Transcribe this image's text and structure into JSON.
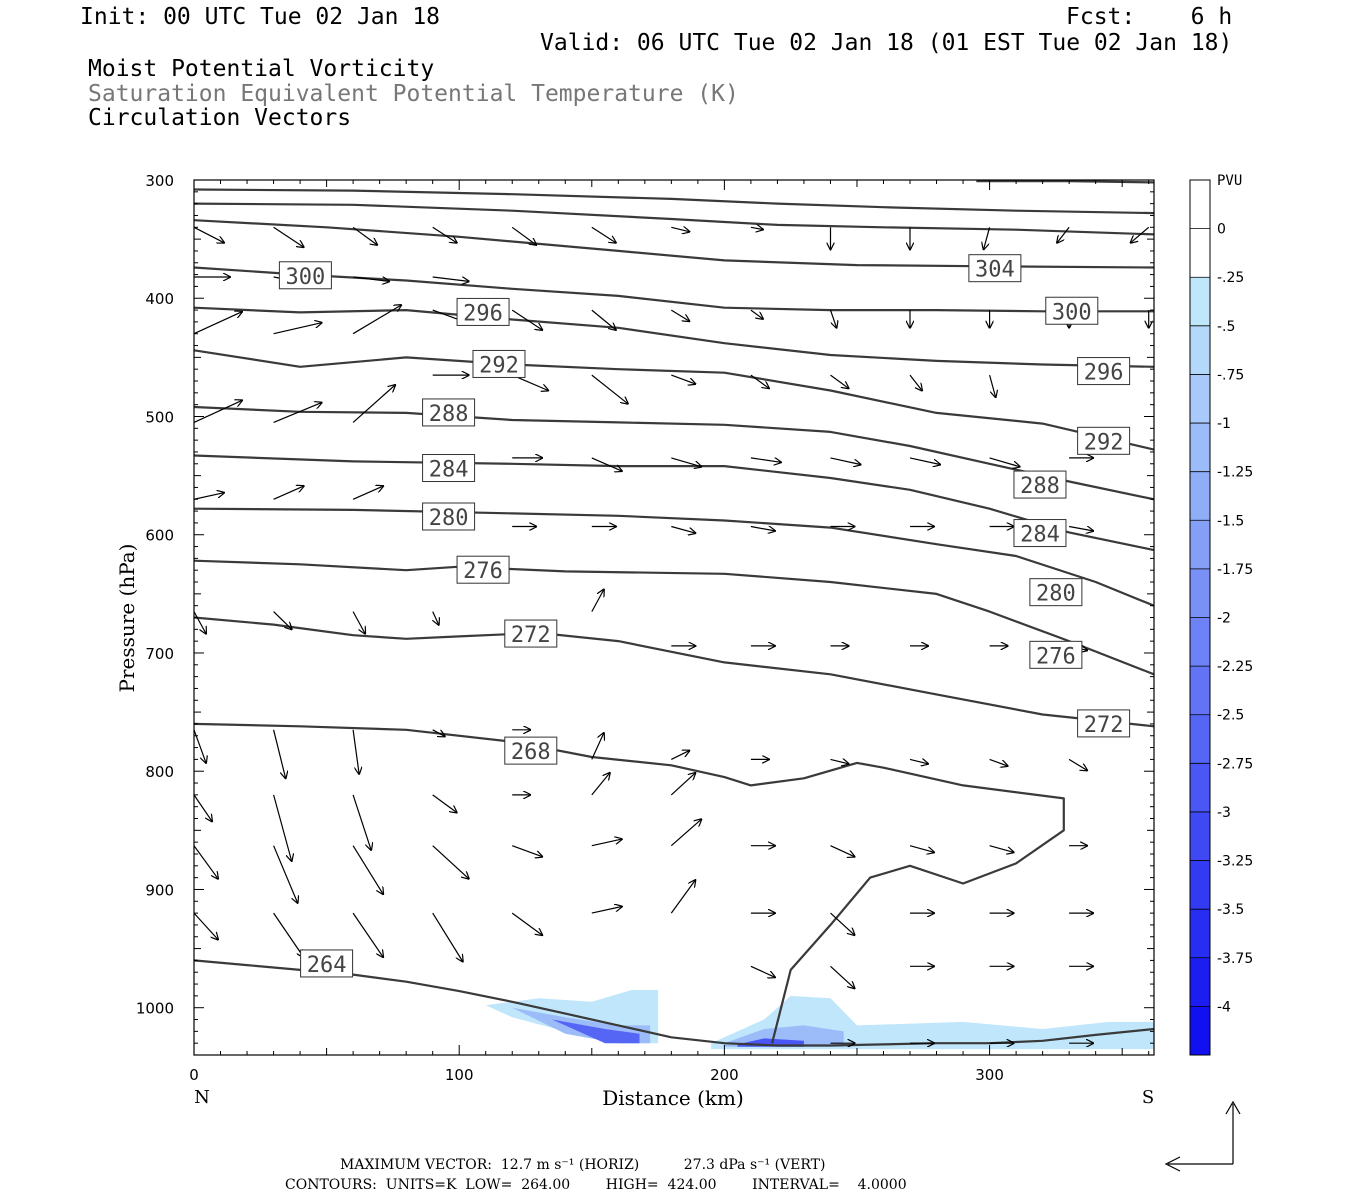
{
  "header": {
    "init": "Init: 00 UTC Tue 02 Jan 18",
    "fcst": "Fcst:    6 h",
    "valid": "Valid: 06 UTC Tue 02 Jan 18 (01 EST Tue 02 Jan 18)",
    "field1": "Moist Potential Vorticity",
    "field2": "Saturation Equivalent Potential Temperature (K)",
    "field3": "Circulation Vectors"
  },
  "footer": {
    "line1": "MAXIMUM VECTOR:  12.7 m s⁻¹ (HORIZ)          27.3 dPa s⁻¹ (VERT)",
    "line2": "CONTOURS:  UNITS=K  LOW=  264.00        HIGH=  424.00        INTERVAL=    4.0000"
  },
  "colors": {
    "contour": "#3a3a3a",
    "pv_light": "#bfe6fb",
    "pv_dark": "#1010f0"
  },
  "chart_data": {
    "type": "cross-section",
    "xlabel": "Distance (km)",
    "ylabel": "Pressure (hPa)",
    "xlim": [
      0,
      362
    ],
    "ylim": [
      1040,
      300
    ],
    "x_ticks": [
      0,
      100,
      200,
      300
    ],
    "y_ticks": [
      300,
      400,
      500,
      600,
      700,
      800,
      900,
      1000
    ],
    "x_end_labels": [
      "N",
      "S"
    ],
    "colorbar": {
      "unit": "PVU",
      "levels": [
        "0",
        "-.25",
        "-.5",
        "-.75",
        "-1",
        "-1.25",
        "-1.5",
        "-1.75",
        "-2",
        "-2.25",
        "-2.5",
        "-2.75",
        "-3",
        "-3.25",
        "-3.5",
        "-3.75",
        "-4"
      ]
    },
    "contours": [
      {
        "label": "264",
        "x": [
          0,
          20,
          40,
          60,
          80,
          100,
          120,
          140,
          160,
          180,
          200,
          220,
          240,
          260,
          280,
          300,
          320,
          340,
          362
        ],
        "p": [
          960,
          964,
          968,
          972,
          978,
          986,
          995,
          1005,
          1015,
          1025,
          1030,
          1032,
          1032,
          1031,
          1030,
          1030,
          1028,
          1023,
          1018
        ]
      },
      {
        "label": "268",
        "x": [
          0,
          40,
          80,
          120,
          150,
          180,
          200,
          210,
          230,
          250,
          260,
          290,
          328,
          328,
          310,
          290,
          270,
          255,
          240,
          225,
          218
        ],
        "p": [
          760,
          762,
          765,
          775,
          788,
          795,
          805,
          812,
          806,
          793,
          797,
          812,
          823,
          850,
          878,
          895,
          880,
          890,
          930,
          968,
          1030
        ]
      },
      {
        "label": "272",
        "x": [
          0,
          30,
          60,
          80,
          100,
          130,
          160,
          200,
          240,
          280,
          320,
          362
        ],
        "p": [
          670,
          676,
          685,
          688,
          686,
          683,
          690,
          708,
          718,
          735,
          752,
          762
        ]
      },
      {
        "label": "276",
        "x": [
          0,
          40,
          80,
          100,
          140,
          200,
          240,
          280,
          300,
          330,
          362
        ],
        "p": [
          622,
          625,
          630,
          627,
          631,
          633,
          640,
          650,
          665,
          690,
          718
        ]
      },
      {
        "label": "280",
        "x": [
          0,
          60,
          120,
          160,
          200,
          240,
          280,
          310,
          340,
          362
        ],
        "p": [
          578,
          579,
          582,
          584,
          588,
          594,
          608,
          618,
          640,
          660
        ]
      },
      {
        "label": "284",
        "x": [
          0,
          60,
          120,
          160,
          200,
          240,
          270,
          300,
          330,
          362
        ],
        "p": [
          533,
          538,
          540,
          542,
          542,
          552,
          562,
          578,
          598,
          613
        ]
      },
      {
        "label": "288",
        "x": [
          0,
          40,
          80,
          120,
          160,
          200,
          240,
          270,
          300,
          330,
          362
        ],
        "p": [
          492,
          496,
          497,
          503,
          505,
          507,
          513,
          525,
          540,
          555,
          570
        ]
      },
      {
        "label": "292",
        "x": [
          0,
          40,
          80,
          120,
          160,
          200,
          240,
          280,
          320,
          362
        ],
        "p": [
          444,
          458,
          450,
          456,
          460,
          463,
          478,
          497,
          506,
          528
        ]
      },
      {
        "label": "296",
        "x": [
          0,
          40,
          80,
          120,
          160,
          200,
          240,
          280,
          320,
          362
        ],
        "p": [
          408,
          412,
          410,
          418,
          425,
          438,
          448,
          453,
          456,
          458
        ]
      },
      {
        "label": "300",
        "x": [
          0,
          40,
          80,
          120,
          160,
          200,
          240,
          280,
          320,
          362
        ],
        "p": [
          374,
          380,
          385,
          392,
          398,
          408,
          410,
          410,
          411,
          411
        ]
      },
      {
        "label": "304",
        "x": [
          0,
          50,
          100,
          160,
          200,
          250,
          300,
          362
        ],
        "p": [
          334,
          340,
          348,
          360,
          368,
          372,
          373,
          374
        ]
      },
      {
        "label": "",
        "x": [
          0,
          60,
          120,
          180,
          220,
          260,
          310,
          362
        ],
        "p": [
          320,
          321,
          326,
          333,
          338,
          340,
          342,
          346
        ]
      },
      {
        "label": "",
        "x": [
          0,
          60,
          120,
          180,
          220,
          260,
          310,
          362
        ],
        "p": [
          308,
          309,
          312,
          316,
          320,
          323,
          326,
          328
        ]
      },
      {
        "label": "",
        "x": [
          295,
          330,
          362
        ],
        "p": [
          301,
          301,
          302
        ]
      }
    ],
    "contour_labels": [
      {
        "text": "264",
        "x": 50,
        "p": 963
      },
      {
        "text": "268",
        "x": 127,
        "p": 783
      },
      {
        "text": "272",
        "x": 127,
        "p": 684
      },
      {
        "text": "276",
        "x": 109,
        "p": 630
      },
      {
        "text": "280",
        "x": 96,
        "p": 585
      },
      {
        "text": "284",
        "x": 96,
        "p": 544
      },
      {
        "text": "288",
        "x": 96,
        "p": 497
      },
      {
        "text": "292",
        "x": 115,
        "p": 456
      },
      {
        "text": "296",
        "x": 109,
        "p": 412
      },
      {
        "text": "300",
        "x": 42,
        "p": 381
      },
      {
        "text": "304",
        "x": 302,
        "p": 375
      },
      {
        "text": "300",
        "x": 331,
        "p": 411
      },
      {
        "text": "296",
        "x": 343,
        "p": 462
      },
      {
        "text": "292",
        "x": 343,
        "p": 521
      },
      {
        "text": "288",
        "x": 319,
        "p": 558
      },
      {
        "text": "284",
        "x": 319,
        "p": 599
      },
      {
        "text": "280",
        "x": 325,
        "p": 649
      },
      {
        "text": "276",
        "x": 325,
        "p": 702
      },
      {
        "text": "272",
        "x": 343,
        "p": 760
      }
    ],
    "pv_regions": [
      {
        "level": "-.25",
        "x": [
          110,
          130,
          150,
          165,
          175,
          175,
          160,
          140,
          120,
          110
        ],
        "p": [
          998,
          992,
          995,
          985,
          985,
          1030,
          1030,
          1020,
          1008,
          998
        ]
      },
      {
        "level": "-1",
        "x": [
          120,
          140,
          160,
          172,
          172,
          160,
          140,
          120
        ],
        "p": [
          1000,
          1008,
          1015,
          1015,
          1030,
          1030,
          1022,
          1000
        ]
      },
      {
        "level": "-2.5",
        "x": [
          135,
          155,
          168,
          168,
          155,
          135
        ],
        "p": [
          1010,
          1018,
          1022,
          1030,
          1030,
          1010
        ]
      },
      {
        "level": "-.25",
        "x": [
          195,
          215,
          225,
          240,
          250,
          290,
          320,
          345,
          362,
          362,
          195
        ],
        "p": [
          1030,
          1010,
          990,
          992,
          1015,
          1012,
          1018,
          1012,
          1012,
          1035,
          1035
        ]
      },
      {
        "level": "-1",
        "x": [
          200,
          215,
          230,
          245,
          245,
          200
        ],
        "p": [
          1030,
          1018,
          1015,
          1020,
          1033,
          1033
        ]
      },
      {
        "level": "-2.75",
        "x": [
          205,
          215,
          230,
          230,
          205
        ],
        "p": [
          1031,
          1026,
          1028,
          1033,
          1033
        ]
      }
    ],
    "vectors_rows": [
      {
        "p": 340,
        "x": [
          0,
          30,
          60,
          90,
          120,
          150,
          180,
          210,
          240,
          270,
          300,
          330,
          360
        ],
        "u": [
          5,
          5,
          4,
          4,
          4,
          4,
          3,
          2,
          0,
          0,
          -1,
          -2,
          -3
        ],
        "w": [
          -7,
          -9,
          -8,
          -7,
          -8,
          -7,
          -2,
          -1,
          -10,
          -10,
          -10,
          -7,
          -7
        ]
      },
      {
        "p": 382,
        "x": [
          0,
          30,
          60,
          90
        ],
        "u": [
          6,
          6,
          6,
          6
        ],
        "w": [
          0,
          -3,
          -2,
          -2
        ]
      },
      {
        "p": 410,
        "x": [
          90,
          120,
          150,
          180,
          210,
          240,
          270,
          300,
          330,
          360
        ],
        "u": [
          6,
          5,
          4,
          3,
          2,
          1,
          0,
          0,
          0,
          0
        ],
        "w": [
          -6,
          -9,
          -9,
          -5,
          -4,
          -8,
          -8,
          -8,
          -8,
          -8
        ]
      },
      {
        "p": 430,
        "x": [
          0,
          30,
          60
        ],
        "u": [
          8,
          8,
          8
        ],
        "w": [
          10,
          5,
          13
        ]
      },
      {
        "p": 465,
        "x": [
          90,
          120,
          150,
          180,
          210,
          240,
          270,
          300
        ],
        "u": [
          6,
          6,
          6,
          4,
          3,
          3,
          2,
          1
        ],
        "w": [
          0,
          -7,
          -13,
          -4,
          -6,
          -6,
          -7,
          -10
        ]
      },
      {
        "p": 505,
        "x": [
          0,
          30,
          60,
          90
        ],
        "u": [
          8,
          8,
          7,
          6
        ],
        "w": [
          10,
          9,
          17,
          5
        ]
      },
      {
        "p": 535,
        "x": [
          120,
          150,
          180,
          210,
          240,
          270,
          300,
          330
        ],
        "u": [
          5,
          5,
          5,
          5,
          5,
          5,
          5,
          4
        ],
        "w": [
          0,
          -6,
          -4,
          -2,
          -3,
          -3,
          -4,
          0
        ]
      },
      {
        "p": 570,
        "x": [
          0,
          30,
          60
        ],
        "u": [
          5,
          5,
          5
        ],
        "w": [
          3,
          6,
          6
        ]
      },
      {
        "p": 593,
        "x": [
          90,
          120,
          150,
          180,
          210,
          240,
          270,
          300,
          330
        ],
        "u": [
          5,
          4,
          4,
          4,
          4,
          4,
          4,
          4,
          4
        ],
        "w": [
          0,
          0,
          0,
          -3,
          -2,
          0,
          0,
          0,
          -2
        ]
      },
      {
        "p": 665,
        "x": [
          0,
          30,
          60,
          90,
          150
        ],
        "u": [
          2,
          3,
          2,
          1,
          2
        ],
        "w": [
          -10,
          -8,
          -10,
          -6,
          10
        ]
      },
      {
        "p": 694,
        "x": [
          180,
          210,
          240,
          270,
          300,
          330
        ],
        "u": [
          4,
          4,
          3,
          3,
          3,
          3
        ],
        "w": [
          0,
          0,
          0,
          0,
          0,
          -2
        ]
      },
      {
        "p": 765,
        "x": [
          0,
          30,
          60,
          90,
          120
        ],
        "u": [
          2,
          2,
          1,
          2,
          3
        ],
        "w": [
          -15,
          -22,
          -20,
          -3,
          0
        ]
      },
      {
        "p": 790,
        "x": [
          150,
          180,
          210,
          240,
          270,
          300,
          330
        ],
        "u": [
          2,
          3,
          3,
          3,
          3,
          3,
          3
        ],
        "w": [
          12,
          4,
          0,
          -2,
          -2,
          -3,
          -5
        ]
      },
      {
        "p": 820,
        "x": [
          0,
          30,
          60,
          90,
          120,
          150,
          180
        ],
        "u": [
          3,
          3,
          3,
          4,
          3,
          3,
          4
        ],
        "w": [
          -12,
          -30,
          -25,
          -8,
          0,
          10,
          10
        ]
      },
      {
        "p": 863,
        "x": [
          0,
          30,
          60,
          90,
          120,
          150,
          180,
          210,
          240,
          270,
          300,
          330
        ],
        "u": [
          4,
          4,
          5,
          6,
          5,
          5,
          5,
          4,
          4,
          4,
          4,
          3
        ],
        "w": [
          -15,
          -26,
          -22,
          -15,
          -5,
          3,
          12,
          0,
          -5,
          -3,
          -3,
          0
        ]
      },
      {
        "p": 920,
        "x": [
          0,
          30,
          60,
          90,
          120,
          150,
          180,
          210,
          240,
          270,
          300,
          330
        ],
        "u": [
          4,
          5,
          5,
          5,
          5,
          5,
          4,
          4,
          4,
          4,
          4,
          4
        ],
        "w": [
          -12,
          -20,
          -20,
          -22,
          -10,
          3,
          15,
          0,
          -10,
          0,
          0,
          0
        ]
      },
      {
        "p": 965,
        "x": [
          210,
          240,
          270,
          300,
          330
        ],
        "u": [
          4,
          4,
          4,
          4,
          4
        ],
        "w": [
          -5,
          -10,
          0,
          0,
          0
        ]
      },
      {
        "p": 1030,
        "x": [
          240,
          270,
          300,
          330
        ],
        "u": [
          4,
          4,
          4,
          4
        ],
        "w": [
          0,
          0,
          0,
          0
        ]
      }
    ],
    "max_vector": {
      "horiz": "12.7 m s-1",
      "vert": "27.3 dPa s-1"
    }
  }
}
